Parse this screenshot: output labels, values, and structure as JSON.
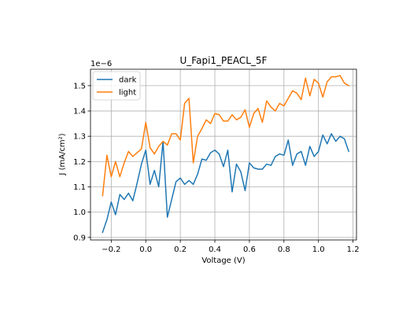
{
  "chart_data": {
    "type": "line",
    "title": "U_Fapi1_PEACL_5F",
    "xlabel": "Voltage (V)",
    "ylabel": "J (mA/cm²)",
    "y_offset_label": "1e−6",
    "y_multiplier": 1e-06,
    "xlim": [
      -0.32,
      1.22
    ],
    "ylim": [
      0.89,
      1.565
    ],
    "x_ticks": [
      -0.2,
      0.0,
      0.2,
      0.4,
      0.6,
      0.8,
      1.0,
      1.2
    ],
    "x_tick_labels": [
      "−0.2",
      "0.0",
      "0.2",
      "0.4",
      "0.6",
      "0.8",
      "1.0",
      "1.2"
    ],
    "y_ticks": [
      0.9,
      1.0,
      1.1,
      1.2,
      1.3,
      1.4,
      1.5
    ],
    "y_tick_labels": [
      "0.9",
      "1.0",
      "1.1",
      "1.2",
      "1.3",
      "1.4",
      "1.5"
    ],
    "grid": true,
    "legend_position": "upper left",
    "x": [
      -0.25,
      -0.225,
      -0.2,
      -0.175,
      -0.15,
      -0.125,
      -0.1,
      -0.075,
      -0.05,
      -0.025,
      0.0,
      0.025,
      0.05,
      0.075,
      0.1,
      0.125,
      0.15,
      0.175,
      0.2,
      0.225,
      0.25,
      0.275,
      0.3,
      0.325,
      0.35,
      0.375,
      0.4,
      0.425,
      0.45,
      0.475,
      0.5,
      0.525,
      0.55,
      0.575,
      0.6,
      0.625,
      0.65,
      0.675,
      0.7,
      0.725,
      0.75,
      0.775,
      0.8,
      0.825,
      0.85,
      0.875,
      0.9,
      0.925,
      0.95,
      0.975,
      1.0,
      1.025,
      1.05,
      1.075,
      1.1,
      1.125,
      1.15,
      1.175
    ],
    "series": [
      {
        "name": "dark",
        "color": "#1f77b4",
        "values": [
          0.92,
          0.97,
          1.04,
          0.99,
          1.07,
          1.05,
          1.075,
          1.045,
          1.115,
          1.19,
          1.245,
          1.11,
          1.165,
          1.1,
          1.28,
          0.98,
          1.05,
          1.12,
          1.135,
          1.11,
          1.125,
          1.11,
          1.15,
          1.21,
          1.205,
          1.235,
          1.245,
          1.23,
          1.18,
          1.245,
          1.08,
          1.19,
          1.16,
          1.085,
          1.195,
          1.175,
          1.17,
          1.17,
          1.19,
          1.185,
          1.22,
          1.23,
          1.225,
          1.285,
          1.185,
          1.23,
          1.24,
          1.185,
          1.26,
          1.22,
          1.24,
          1.305,
          1.27,
          1.31,
          1.28,
          1.3,
          1.29,
          1.24
        ]
      },
      {
        "name": "light",
        "color": "#ff7f0e",
        "values": [
          1.065,
          1.225,
          1.14,
          1.2,
          1.14,
          1.195,
          1.24,
          1.22,
          1.235,
          1.25,
          1.355,
          1.255,
          1.23,
          1.26,
          1.28,
          1.265,
          1.31,
          1.31,
          1.285,
          1.43,
          1.45,
          1.195,
          1.3,
          1.33,
          1.365,
          1.35,
          1.39,
          1.385,
          1.36,
          1.36,
          1.385,
          1.365,
          1.375,
          1.405,
          1.335,
          1.39,
          1.41,
          1.355,
          1.44,
          1.415,
          1.4,
          1.43,
          1.42,
          1.45,
          1.48,
          1.47,
          1.445,
          1.53,
          1.46,
          1.525,
          1.51,
          1.455,
          1.515,
          1.535,
          1.535,
          1.54,
          1.51,
          1.5
        ]
      }
    ]
  }
}
